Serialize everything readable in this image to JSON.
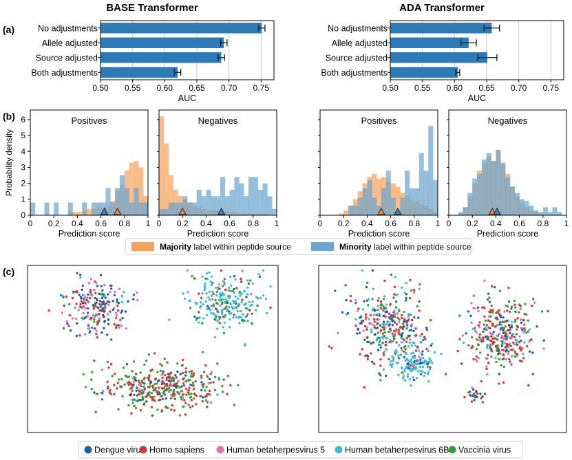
{
  "panel_letters": [
    "(a)",
    "(b)",
    "(c)"
  ],
  "colors": {
    "bar": "#2c7ab8",
    "majority": "#f5a35a",
    "minority": "#6ea6d0",
    "overlap": "#7f7f73",
    "species": {
      "Dengue virus": "#1f5fa3",
      "Homo sapiens": "#cc3b34",
      "Human betaherpesvirus 5": "#dd6fbf",
      "Human betaherpesvirus 6B": "#3dbccd",
      "Vaccinia virus": "#3e9a3f"
    }
  },
  "legend_b": {
    "majority_bold": "Majority",
    "majority_rest": " label within peptide source",
    "minority_bold": "Minority",
    "minority_rest": " label within peptide source"
  },
  "legend_c": [
    "Dengue virus",
    "Homo sapiens",
    "Human betaherpesvirus 5",
    "Human betaherpesvirus 6B",
    "Vaccinia virus"
  ],
  "chart_data": [
    {
      "id": "a-base",
      "type": "bar",
      "orientation": "horizontal",
      "title": "BASE Transformer",
      "categories": [
        "No adjustments",
        "Allele adjusted",
        "Source adjusted",
        "Both adjustments"
      ],
      "values": [
        0.751,
        0.692,
        0.688,
        0.62
      ],
      "error": [
        0.005,
        0.005,
        0.005,
        0.005
      ],
      "xlabel": "AUC",
      "xlim": [
        0.5,
        0.77
      ],
      "xticks": [
        "0.50",
        "0.55",
        "0.60",
        "0.65",
        "0.70",
        "0.75"
      ],
      "grid": "vertical"
    },
    {
      "id": "a-ada",
      "type": "bar",
      "orientation": "horizontal",
      "title": "ADA Transformer",
      "categories": [
        "No adjustments",
        "Allele adjusted",
        "Source adjusted",
        "Both adjustments"
      ],
      "values": [
        0.658,
        0.622,
        0.651,
        0.605
      ],
      "error": [
        0.012,
        0.012,
        0.015,
        0.003
      ],
      "xlabel": "AUC",
      "xlim": [
        0.5,
        0.77
      ],
      "xticks": [
        "0.50",
        "0.55",
        "0.60",
        "0.65",
        "0.70",
        "0.75"
      ],
      "grid": "vertical"
    },
    {
      "id": "b-base-pos",
      "type": "histogram",
      "title": "Positives",
      "xlabel": "Prediction score",
      "ylabel": "Probability density",
      "xlim": [
        0,
        1
      ],
      "ylim": [
        0,
        6.6
      ],
      "xticks": [
        "0",
        "0.2",
        "0.4",
        "0.6",
        "0.8",
        "1"
      ],
      "yticks": [
        "0",
        "1",
        "2",
        "3",
        "4",
        "5",
        "6"
      ],
      "bin_width": 0.04,
      "majority_density": [
        0,
        0,
        0,
        0,
        0,
        0,
        0,
        0,
        0.2,
        0.2,
        0.2,
        0.3,
        0.4,
        0.4,
        0.5,
        0.5,
        0.6,
        0.9,
        1.5,
        1.9,
        2.8,
        3.3,
        3.4,
        3.0,
        1.2
      ],
      "minority_density": [
        0.8,
        0,
        0,
        0.8,
        0,
        0.8,
        0,
        0,
        0.8,
        0,
        0,
        0.8,
        0,
        0.8,
        0.8,
        0.8,
        1.7,
        0.8,
        1.7,
        2.5,
        1.7,
        0.8,
        1.7,
        0.8,
        0.8
      ],
      "majority_mean": 0.74,
      "minority_mean": 0.63
    },
    {
      "id": "b-base-neg",
      "type": "histogram",
      "title": "Negatives",
      "xlabel": "Prediction score",
      "xlim": [
        0,
        1
      ],
      "ylim": [
        0,
        6.6
      ],
      "xticks": [
        "0",
        "0.2",
        "0.4",
        "0.6",
        "0.8",
        "1"
      ],
      "bin_width": 0.04,
      "majority_density": [
        6.2,
        4.5,
        2.5,
        1.6,
        1.2,
        1.0,
        0.8,
        0.6,
        0.5,
        0.4,
        0.3,
        0.3,
        0.3,
        0.2,
        0.2,
        0.2,
        0.15,
        0.1,
        0.1,
        0.1,
        0.1,
        0.1,
        0.1,
        0,
        0
      ],
      "minority_density": [
        0.4,
        0.4,
        0.8,
        0.8,
        0.8,
        1.2,
        0.8,
        0.8,
        1.6,
        1.2,
        1.6,
        1.2,
        1.2,
        2.4,
        1.2,
        1.6,
        2.4,
        2.0,
        1.2,
        2.4,
        2.4,
        1.6,
        2.0,
        1.2,
        0.4
      ],
      "majority_mean": 0.2,
      "minority_mean": 0.53
    },
    {
      "id": "b-ada-pos",
      "type": "histogram",
      "title": "Positives",
      "xlabel": "Prediction score",
      "xlim": [
        0,
        1
      ],
      "ylim": [
        0,
        6.6
      ],
      "xticks": [
        "0",
        "0.2",
        "0.4",
        "0.6",
        "0.8",
        "1"
      ],
      "bin_width": 0.04,
      "majority_density": [
        0,
        0,
        0,
        0,
        0.1,
        0.3,
        0.6,
        1.0,
        1.5,
        2.0,
        2.4,
        2.6,
        2.3,
        2.4,
        2.1,
        2.0,
        1.8,
        1.4,
        1.2,
        1.0,
        0.9,
        0.7,
        0.6,
        0.4,
        0.2
      ],
      "minority_density": [
        0,
        0,
        0,
        0,
        0,
        0,
        0.6,
        0.6,
        1.1,
        1.7,
        2.2,
        1.1,
        0.6,
        1.7,
        2.8,
        1.1,
        0,
        1.1,
        2.8,
        1.7,
        1.7,
        3.9,
        2.8,
        5.6,
        2.2
      ],
      "majority_mean": 0.52,
      "minority_mean": 0.66
    },
    {
      "id": "b-ada-neg",
      "type": "histogram",
      "title": "Negatives",
      "xlabel": "Prediction score",
      "xlim": [
        0,
        1
      ],
      "ylim": [
        0,
        6.6
      ],
      "xticks": [
        "0",
        "0.2",
        "0.4",
        "0.6",
        "0.8",
        "1"
      ],
      "bin_width": 0.04,
      "majority_density": [
        0,
        0,
        0.1,
        0.5,
        1.2,
        2.0,
        2.8,
        3.3,
        3.7,
        3.4,
        4.1,
        3.2,
        2.6,
        1.8,
        1.2,
        0.8,
        0.5,
        0.3,
        0.2,
        0.1,
        0.05,
        0,
        0,
        0,
        0
      ],
      "minority_density": [
        0,
        0,
        0.2,
        0.5,
        1.4,
        2.3,
        2.6,
        3.5,
        3.9,
        3.4,
        4.1,
        3.3,
        2.4,
        1.8,
        1.4,
        1.0,
        0.9,
        0.6,
        0.3,
        0.2,
        0.5,
        0.2,
        0.5,
        0.2,
        0
      ],
      "majority_mean": 0.37,
      "minority_mean": 0.41
    },
    {
      "id": "c-left",
      "type": "scatter",
      "clusters": [
        {
          "cx": 0.28,
          "cy": 0.25,
          "sx": 0.16,
          "sy": 0.2,
          "n": 210,
          "mix": [
            0.45,
            0.25,
            0.18,
            0.07,
            0.05
          ]
        },
        {
          "cx": 0.79,
          "cy": 0.22,
          "sx": 0.16,
          "sy": 0.2,
          "n": 240,
          "mix": [
            0.06,
            0.12,
            0.02,
            0.68,
            0.12
          ]
        },
        {
          "cx": 0.53,
          "cy": 0.73,
          "sx": 0.29,
          "sy": 0.17,
          "n": 380,
          "mix": [
            0.16,
            0.37,
            0.05,
            0.02,
            0.4
          ]
        }
      ]
    },
    {
      "id": "c-right",
      "type": "scatter",
      "clusters": [
        {
          "cx": 0.28,
          "cy": 0.35,
          "sx": 0.18,
          "sy": 0.27,
          "n": 330,
          "mix": [
            0.25,
            0.3,
            0.12,
            0.18,
            0.15
          ]
        },
        {
          "cx": 0.38,
          "cy": 0.58,
          "sx": 0.1,
          "sy": 0.12,
          "n": 130,
          "mix": [
            0.08,
            0.05,
            0.05,
            0.8,
            0.02
          ]
        },
        {
          "cx": 0.74,
          "cy": 0.42,
          "sx": 0.16,
          "sy": 0.26,
          "n": 330,
          "mix": [
            0.2,
            0.33,
            0.15,
            0.1,
            0.22
          ]
        },
        {
          "cx": 0.63,
          "cy": 0.78,
          "sx": 0.04,
          "sy": 0.06,
          "n": 25,
          "mix": [
            0.5,
            0.3,
            0.1,
            0.05,
            0.05
          ]
        }
      ]
    }
  ]
}
